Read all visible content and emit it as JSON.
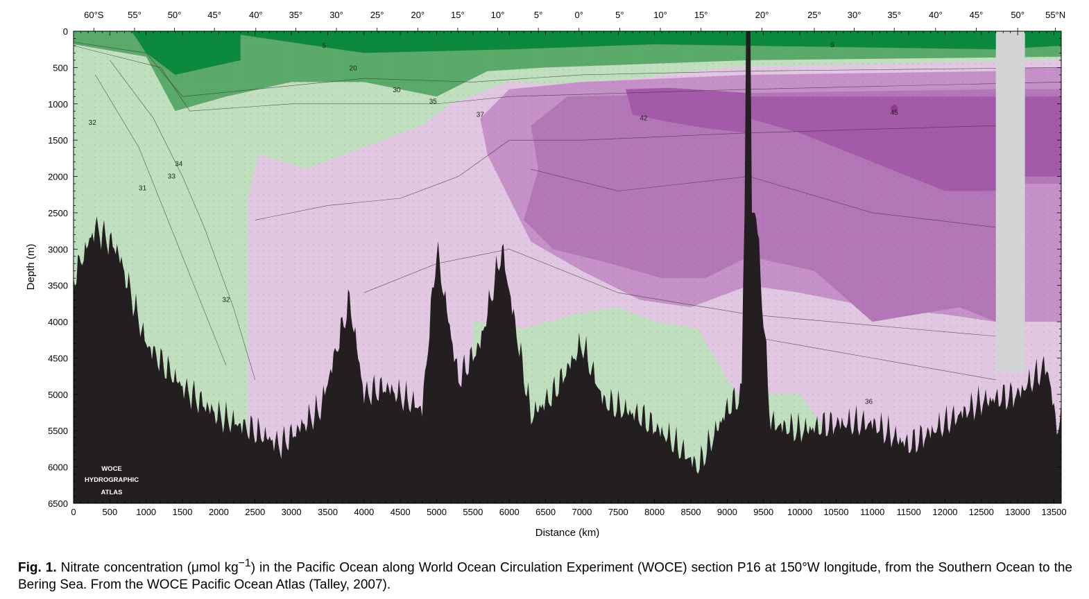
{
  "chart_data": {
    "type": "heatmap",
    "variable": "Nitrate concentration",
    "xlabel": "Distance (km)",
    "ylabel": "Depth (m)",
    "xlim": [
      0,
      13600
    ],
    "ylim": [
      6500,
      0
    ],
    "x_ticks": [
      0,
      500,
      1000,
      1500,
      2000,
      2500,
      3000,
      3500,
      4000,
      4500,
      5000,
      5500,
      6000,
      6500,
      7000,
      7500,
      8000,
      8500,
      9000,
      9500,
      10000,
      10500,
      11000,
      11500,
      12000,
      12500,
      13000,
      13500
    ],
    "y_ticks": [
      0,
      500,
      1000,
      1500,
      2000,
      2500,
      3000,
      3500,
      4000,
      4500,
      5000,
      5500,
      6000,
      6500
    ],
    "latitude_labels": [
      {
        "label": "60°S",
        "x": 280
      },
      {
        "label": "55°",
        "x": 840
      },
      {
        "label": "50°",
        "x": 1390
      },
      {
        "label": "45°",
        "x": 1940
      },
      {
        "label": "40°",
        "x": 2510
      },
      {
        "label": "35°",
        "x": 3060
      },
      {
        "label": "30°",
        "x": 3620
      },
      {
        "label": "25°",
        "x": 4180
      },
      {
        "label": "20°",
        "x": 4740
      },
      {
        "label": "15°",
        "x": 5290
      },
      {
        "label": "10°",
        "x": 5840
      },
      {
        "label": "5°",
        "x": 6400
      },
      {
        "label": "0°",
        "x": 6960
      },
      {
        "label": "5°",
        "x": 7520
      },
      {
        "label": "10°",
        "x": 8080
      },
      {
        "label": "15°",
        "x": 8640
      },
      {
        "label": "20°",
        "x": 9480
      },
      {
        "label": "25°",
        "x": 10200
      },
      {
        "label": "30°",
        "x": 10750
      },
      {
        "label": "35°",
        "x": 11300
      },
      {
        "label": "40°",
        "x": 11870
      },
      {
        "label": "45°",
        "x": 12430
      },
      {
        "label": "50°",
        "x": 13000
      },
      {
        "label": "55°N",
        "x": 13520
      }
    ],
    "contour_labels": [
      {
        "value": "5",
        "x": 3450,
        "y": 200
      },
      {
        "value": "5",
        "x": 10450,
        "y": 190
      },
      {
        "value": "20",
        "x": 3850,
        "y": 510
      },
      {
        "value": "30",
        "x": 4450,
        "y": 810
      },
      {
        "value": "35",
        "x": 4950,
        "y": 970
      },
      {
        "value": "37",
        "x": 5600,
        "y": 1150
      },
      {
        "value": "42",
        "x": 7850,
        "y": 1200
      },
      {
        "value": "45",
        "x": 11300,
        "y": 1120
      },
      {
        "value": "32",
        "x": 260,
        "y": 1260
      },
      {
        "value": "34",
        "x": 1450,
        "y": 1830
      },
      {
        "value": "33",
        "x": 1350,
        "y": 2000
      },
      {
        "value": "31",
        "x": 950,
        "y": 2160
      },
      {
        "value": "32",
        "x": 2100,
        "y": 3700
      },
      {
        "value": "36",
        "x": 10950,
        "y": 5100
      }
    ],
    "color_levels": [
      {
        "range": "< 20",
        "color": "#0b8a3f"
      },
      {
        "range": "20–30",
        "color": "#5aab6a"
      },
      {
        "range": "30–35",
        "color": "#bfdfbf"
      },
      {
        "range": "35–37",
        "color": "#e2c7e2"
      },
      {
        "range": "37–40",
        "color": "#c591c8"
      },
      {
        "range": "40–42",
        "color": "#b376b6"
      },
      {
        "range": "42–45",
        "color": "#a35aa8"
      },
      {
        "range": "> 45",
        "color": "#8e3b94"
      }
    ],
    "bathymetry_color": "#231f20",
    "no_data_color": "#d1d3d4",
    "no_data_x_range": [
      12700,
      13100
    ],
    "watermark": [
      "WOCE",
      "HYDROGRAPHIC",
      "ATLAS"
    ]
  },
  "caption": {
    "label": "Fig. 1.",
    "text_before": " Nitrate concentration (μmol kg",
    "superscript": "−1",
    "text_after": ") in the Pacific Ocean along World Ocean Circulation Experiment (WOCE) section P16 at 150°W longitude, from the Southern Ocean to the Bering Sea. From the WOCE Pacific Ocean Atlas (Talley, 2007)."
  }
}
